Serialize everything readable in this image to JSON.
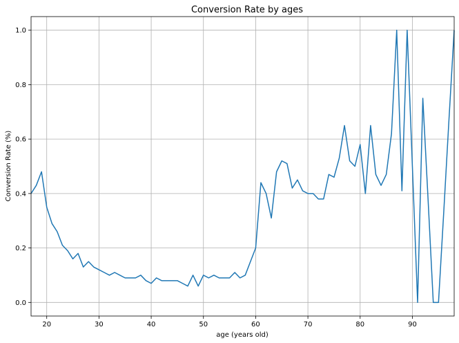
{
  "chart_data": {
    "type": "line",
    "title": "Conversion Rate by ages",
    "xlabel": "age (years old)",
    "ylabel": "Conversion Rate (%)",
    "xlim": [
      17,
      98
    ],
    "ylim": [
      -0.05,
      1.05
    ],
    "xticks": [
      20,
      30,
      40,
      50,
      60,
      70,
      80,
      90
    ],
    "xtick_labels": [
      "20",
      "30",
      "40",
      "50",
      "60",
      "70",
      "80",
      "90"
    ],
    "yticks": [
      0.0,
      0.2,
      0.4,
      0.6,
      0.8,
      1.0
    ],
    "ytick_labels": [
      "0.0",
      "0.2",
      "0.4",
      "0.6",
      "0.8",
      "1.0"
    ],
    "grid": true,
    "series": [
      {
        "name": "conversion rate",
        "color": "#1f77b4",
        "x": [
          17,
          18,
          19,
          20,
          21,
          22,
          23,
          24,
          25,
          26,
          27,
          28,
          29,
          30,
          31,
          32,
          33,
          34,
          35,
          36,
          37,
          38,
          39,
          40,
          41,
          42,
          43,
          44,
          45,
          46,
          47,
          48,
          49,
          50,
          51,
          52,
          53,
          54,
          55,
          56,
          57,
          58,
          59,
          60,
          61,
          62,
          63,
          64,
          65,
          66,
          67,
          68,
          69,
          70,
          71,
          72,
          73,
          74,
          75,
          76,
          77,
          78,
          79,
          80,
          81,
          82,
          83,
          84,
          85,
          86,
          87,
          88,
          89,
          90,
          91,
          92,
          93,
          94,
          95,
          96,
          97,
          98
        ],
        "y": [
          0.4,
          0.43,
          0.48,
          0.35,
          0.29,
          0.26,
          0.21,
          0.19,
          0.16,
          0.18,
          0.13,
          0.15,
          0.13,
          0.12,
          0.11,
          0.1,
          0.11,
          0.1,
          0.09,
          0.09,
          0.09,
          0.1,
          0.08,
          0.07,
          0.09,
          0.08,
          0.08,
          0.08,
          0.08,
          0.07,
          0.06,
          0.1,
          0.06,
          0.1,
          0.09,
          0.1,
          0.09,
          0.09,
          0.09,
          0.11,
          0.09,
          0.1,
          0.15,
          0.2,
          0.44,
          0.4,
          0.31,
          0.48,
          0.52,
          0.51,
          0.42,
          0.45,
          0.41,
          0.4,
          0.4,
          0.38,
          0.38,
          0.47,
          0.46,
          0.53,
          0.65,
          0.52,
          0.5,
          0.58,
          0.4,
          0.65,
          0.47,
          0.43,
          0.47,
          0.62,
          1.0,
          0.41,
          1.0,
          0.5,
          0.0,
          0.75,
          0.38,
          0.0,
          0.0,
          0.33,
          0.67,
          1.0
        ]
      }
    ]
  }
}
